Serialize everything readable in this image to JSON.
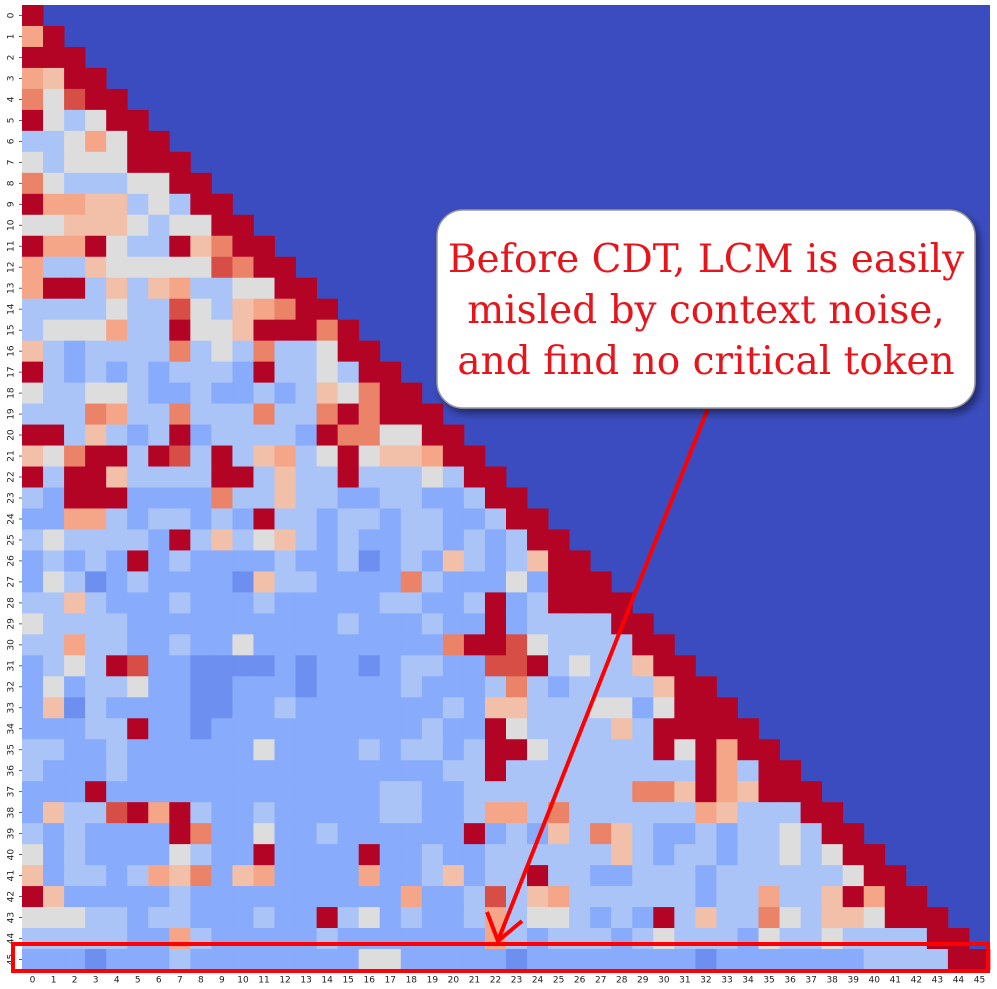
{
  "chart_data": {
    "type": "heatmap",
    "colormap": "coolwarm",
    "clim": [
      0,
      1
    ],
    "xticks": [
      0,
      1,
      2,
      3,
      4,
      5,
      6,
      7,
      8,
      9,
      10,
      11,
      12,
      13,
      14,
      15,
      16,
      17,
      18,
      19,
      20,
      21,
      22,
      23,
      24,
      25,
      26,
      27,
      28,
      29,
      30,
      31,
      32,
      33,
      34,
      35,
      36,
      37,
      38,
      39,
      40,
      41,
      42,
      43,
      44,
      45
    ],
    "yticks": [
      0,
      1,
      2,
      3,
      4,
      5,
      6,
      7,
      8,
      9,
      10,
      11,
      12,
      13,
      14,
      15,
      16,
      17,
      18,
      19,
      20,
      21,
      22,
      23,
      24,
      25,
      26,
      27,
      28,
      29,
      30,
      31,
      32,
      33,
      34,
      35,
      36,
      37,
      38,
      39,
      40,
      41,
      42,
      43,
      44,
      45
    ],
    "annotation": [
      "Before CDT, LCM is easily",
      "misled by context noise,",
      "and find no critical token"
    ],
    "values": [
      [
        1
      ],
      [
        0.7,
        1
      ],
      [
        1,
        1,
        1
      ],
      [
        0.7,
        0.6,
        1,
        1
      ],
      [
        0.8,
        0.5,
        0.9,
        1,
        1
      ],
      [
        1,
        0.5,
        0.4,
        0.5,
        1,
        1
      ],
      [
        0.4,
        0.4,
        0.5,
        0.7,
        0.5,
        1,
        1
      ],
      [
        0.5,
        0.4,
        0.5,
        0.5,
        0.5,
        1,
        1,
        1
      ],
      [
        0.8,
        0.5,
        0.4,
        0.4,
        0.4,
        0.5,
        0.5,
        1,
        1
      ],
      [
        1,
        0.7,
        0.7,
        0.6,
        0.6,
        0.4,
        0.5,
        0.4,
        1,
        1
      ],
      [
        0.5,
        0.5,
        0.6,
        0.6,
        0.6,
        0.5,
        0.4,
        0.5,
        0.5,
        1,
        1
      ],
      [
        1,
        0.7,
        0.7,
        1,
        0.5,
        0.4,
        0.4,
        1,
        0.6,
        0.8,
        1,
        1
      ],
      [
        0.7,
        0.4,
        0.4,
        0.6,
        0.5,
        0.5,
        0.5,
        0.5,
        0.5,
        0.9,
        0.8,
        1,
        1
      ],
      [
        0.7,
        1,
        1,
        0.4,
        0.6,
        0.4,
        0.6,
        0.7,
        0.4,
        0.4,
        0.5,
        0.5,
        1,
        1
      ],
      [
        0.4,
        0.4,
        0.4,
        0.4,
        0.5,
        0.4,
        0.4,
        0.9,
        0.5,
        0.4,
        0.6,
        0.7,
        0.8,
        1,
        1
      ],
      [
        0.4,
        0.5,
        0.5,
        0.5,
        0.7,
        0.4,
        0.4,
        1,
        0.5,
        0.5,
        0.6,
        1,
        1,
        1,
        0.8,
        1
      ],
      [
        0.6,
        0.4,
        0.3,
        0.4,
        0.4,
        0.4,
        0.4,
        0.8,
        0.4,
        0.5,
        0.4,
        0.8,
        0.4,
        0.4,
        0.5,
        1,
        1
      ],
      [
        1,
        0.4,
        0.3,
        0.4,
        0.3,
        0.4,
        0.3,
        0.4,
        0.4,
        0.4,
        0.3,
        1,
        0.4,
        0.4,
        0.5,
        0.4,
        1,
        1
      ],
      [
        0.5,
        0.4,
        0.4,
        0.5,
        0.5,
        0.4,
        0.3,
        0.3,
        0.4,
        0.3,
        0.3,
        0.4,
        0.3,
        0.4,
        0.6,
        0.5,
        0.8,
        1,
        1
      ],
      [
        0.4,
        0.4,
        0.4,
        0.8,
        0.7,
        0.4,
        0.4,
        0.8,
        0.4,
        0.4,
        0.4,
        0.8,
        0.4,
        0.4,
        0.8,
        1,
        0.8,
        1,
        1,
        1
      ],
      [
        1,
        1,
        0.4,
        0.6,
        0.4,
        0.3,
        0.4,
        1,
        0.3,
        0.4,
        0.4,
        0.4,
        0.4,
        0.3,
        1,
        0.8,
        0.8,
        0.5,
        0.5,
        1,
        1
      ],
      [
        0.6,
        0.5,
        0.8,
        1,
        1,
        0.4,
        1,
        0.9,
        0.4,
        1,
        0.4,
        0.6,
        0.7,
        0.4,
        0.5,
        1,
        0.5,
        0.6,
        0.6,
        0.7,
        1,
        1
      ],
      [
        1,
        0.4,
        1,
        1,
        0.6,
        0.4,
        0.4,
        0.4,
        0.4,
        1,
        1,
        0.4,
        0.6,
        0.4,
        0.4,
        1,
        0.4,
        0.4,
        0.4,
        0.5,
        0.4,
        1,
        1
      ],
      [
        0.4,
        0.3,
        1,
        1,
        1,
        0.3,
        0.3,
        0.3,
        0.3,
        0.8,
        0.4,
        0.4,
        0.6,
        0.4,
        0.4,
        0.3,
        0.3,
        0.4,
        0.4,
        0.3,
        0.3,
        0.4,
        1,
        1
      ],
      [
        0.3,
        0.3,
        0.7,
        0.7,
        0.4,
        0.3,
        0.4,
        0.4,
        0.3,
        0.4,
        0.3,
        1,
        0.4,
        0.4,
        0.3,
        0.4,
        0.4,
        0.3,
        0.4,
        0.4,
        0.3,
        0.3,
        0.4,
        1,
        1
      ],
      [
        0.4,
        0.5,
        0.4,
        0.4,
        0.4,
        0.4,
        0.3,
        1,
        0.4,
        0.6,
        0.4,
        0.5,
        0.6,
        0.4,
        0.3,
        0.4,
        0.3,
        0.3,
        0.4,
        0.4,
        0.3,
        0.4,
        0.3,
        0.4,
        1,
        1
      ],
      [
        0.3,
        0.4,
        0.3,
        0.4,
        0.3,
        1,
        0.3,
        0.4,
        0.3,
        0.3,
        0.3,
        0.3,
        0.4,
        0.3,
        0.3,
        0.4,
        0.2,
        0.3,
        0.4,
        0.3,
        0.6,
        0.4,
        0.3,
        0.4,
        0.6,
        1,
        1
      ],
      [
        0.3,
        0.5,
        0.4,
        0.2,
        0.3,
        0.4,
        0.3,
        0.3,
        0.3,
        0.3,
        0.2,
        0.6,
        0.4,
        0.4,
        0.3,
        0.3,
        0.3,
        0.3,
        0.8,
        0.4,
        0.3,
        0.3,
        0.3,
        0.5,
        0.3,
        1,
        1,
        1
      ],
      [
        0.4,
        0.4,
        0.6,
        0.4,
        0.3,
        0.3,
        0.3,
        0.4,
        0.3,
        0.3,
        0.3,
        0.4,
        0.3,
        0.3,
        0.3,
        0.3,
        0.3,
        0.4,
        0.4,
        0.3,
        0.3,
        0.4,
        1,
        0.3,
        0.4,
        1,
        1,
        1,
        1
      ],
      [
        0.5,
        0.4,
        0.4,
        0.4,
        0.4,
        0.3,
        0.3,
        0.3,
        0.3,
        0.3,
        0.3,
        0.3,
        0.3,
        0.3,
        0.3,
        0.4,
        0.3,
        0.3,
        0.3,
        0.4,
        0.3,
        0.3,
        1,
        0.3,
        0.4,
        0.4,
        0.4,
        0.4,
        1,
        1
      ],
      [
        0.4,
        0.4,
        0.7,
        0.4,
        0.4,
        0.3,
        0.3,
        0.4,
        0.3,
        0.3,
        0.5,
        0.3,
        0.3,
        0.3,
        0.3,
        0.3,
        0.3,
        0.3,
        0.3,
        0.3,
        0.8,
        1,
        1,
        0.9,
        0.5,
        0.4,
        0.4,
        0.4,
        0.4,
        1,
        1
      ],
      [
        0.3,
        0.4,
        0.5,
        0.4,
        1,
        0.9,
        0.3,
        0.3,
        0.2,
        0.2,
        0.2,
        0.2,
        0.3,
        0.2,
        0.3,
        0.3,
        0.2,
        0.3,
        0.4,
        0.4,
        0.3,
        0.3,
        0.9,
        0.9,
        1,
        0.4,
        0.5,
        0.4,
        0.4,
        0.6,
        1,
        1
      ],
      [
        0.3,
        0.5,
        0.3,
        0.4,
        0.4,
        0.5,
        0.3,
        0.3,
        0.2,
        0.2,
        0.3,
        0.3,
        0.3,
        0.2,
        0.3,
        0.3,
        0.3,
        0.3,
        0.4,
        0.3,
        0.3,
        0.3,
        0.4,
        0.8,
        0.4,
        0.3,
        0.4,
        0.4,
        0.4,
        0.4,
        0.6,
        1,
        1
      ],
      [
        0.3,
        0.6,
        0.2,
        0.4,
        0.3,
        0.3,
        0.3,
        0.3,
        0.2,
        0.2,
        0.3,
        0.3,
        0.4,
        0.3,
        0.3,
        0.3,
        0.3,
        0.3,
        0.3,
        0.3,
        0.4,
        0.3,
        0.6,
        0.6,
        0.4,
        0.4,
        0.4,
        0.5,
        0.5,
        0.3,
        0.5,
        1,
        1,
        1
      ],
      [
        0.3,
        0.3,
        0.3,
        0.4,
        0.4,
        1,
        0.3,
        0.3,
        0.2,
        0.3,
        0.3,
        0.3,
        0.3,
        0.3,
        0.3,
        0.3,
        0.3,
        0.3,
        0.3,
        0.4,
        0.3,
        0.3,
        1,
        0.5,
        0.4,
        0.4,
        0.4,
        0.4,
        0.6,
        0.4,
        1,
        1,
        1,
        1,
        1
      ],
      [
        0.4,
        0.4,
        0.3,
        0.3,
        0.4,
        0.3,
        0.3,
        0.3,
        0.3,
        0.3,
        0.3,
        0.5,
        0.3,
        0.3,
        0.3,
        0.3,
        0.4,
        0.3,
        0.4,
        0.4,
        0.3,
        0.4,
        1,
        1,
        0.5,
        0.4,
        0.4,
        0.4,
        0.4,
        0.4,
        1,
        0.5,
        1,
        0.7,
        1,
        1
      ],
      [
        0.4,
        0.3,
        0.3,
        0.3,
        0.4,
        0.3,
        0.3,
        0.3,
        0.3,
        0.3,
        0.3,
        0.3,
        0.3,
        0.3,
        0.3,
        0.3,
        0.3,
        0.3,
        0.3,
        0.3,
        0.4,
        0.4,
        1,
        0.4,
        0.4,
        0.4,
        0.4,
        0.4,
        0.4,
        0.4,
        0.4,
        0.4,
        1,
        0.7,
        0.4,
        1,
        1
      ],
      [
        0.3,
        0.3,
        0.3,
        1,
        0.3,
        0.3,
        0.3,
        0.3,
        0.3,
        0.3,
        0.3,
        0.3,
        0.3,
        0.3,
        0.3,
        0.3,
        0.3,
        0.4,
        0.4,
        0.3,
        0.3,
        0.4,
        0.4,
        0.4,
        0.4,
        0.4,
        0.4,
        0.4,
        0.4,
        0.8,
        0.8,
        0.6,
        1,
        0.7,
        0.6,
        1,
        1,
        1
      ],
      [
        0.3,
        0.6,
        0.4,
        0.4,
        0.9,
        1,
        0.7,
        1,
        0.4,
        0.3,
        0.3,
        0.4,
        0.3,
        0.3,
        0.3,
        0.3,
        0.3,
        0.4,
        0.4,
        0.3,
        0.3,
        0.4,
        0.7,
        0.7,
        0.4,
        0.8,
        0.4,
        0.4,
        0.4,
        0.4,
        0.4,
        0.4,
        0.7,
        0.6,
        0.4,
        0.4,
        0.4,
        1,
        1
      ],
      [
        0.4,
        0.3,
        0.4,
        0.3,
        0.3,
        0.3,
        0.3,
        1,
        0.8,
        0.3,
        0.3,
        0.5,
        0.3,
        0.3,
        0.4,
        0.3,
        0.3,
        0.3,
        0.3,
        0.3,
        0.3,
        1,
        0.3,
        0.4,
        0.3,
        0.6,
        0.4,
        0.8,
        0.6,
        0.4,
        0.3,
        0.3,
        0.4,
        0.3,
        0.4,
        0.4,
        0.5,
        0.4,
        1,
        1
      ],
      [
        0.5,
        0.3,
        0.4,
        0.3,
        0.3,
        0.3,
        0.3,
        0.5,
        0.4,
        0.3,
        0.3,
        1,
        0.3,
        0.3,
        0.3,
        0.3,
        1,
        0.3,
        0.3,
        0.4,
        0.3,
        0.3,
        0.4,
        0.4,
        0.4,
        0.4,
        0.4,
        0.4,
        0.6,
        0.4,
        0.3,
        0.4,
        0.4,
        0.3,
        0.4,
        0.4,
        0.5,
        0.4,
        0.5,
        1,
        1
      ],
      [
        0.6,
        0.3,
        0.4,
        0.4,
        0.3,
        0.4,
        0.7,
        0.6,
        0.8,
        0.3,
        0.6,
        0.7,
        0.3,
        0.3,
        0.3,
        0.3,
        0.7,
        0.3,
        0.3,
        0.4,
        0.6,
        0.3,
        0.4,
        0.4,
        1,
        0.4,
        0.4,
        0.3,
        0.3,
        0.4,
        0.4,
        0.4,
        0.3,
        0.4,
        0.4,
        0.4,
        0.4,
        0.4,
        0.4,
        0.5,
        1,
        1
      ],
      [
        1,
        0.6,
        0.3,
        0.3,
        0.3,
        0.3,
        0.3,
        0.4,
        0.3,
        0.3,
        0.3,
        0.3,
        0.3,
        0.3,
        0.3,
        0.3,
        0.3,
        0.3,
        0.7,
        0.3,
        0.3,
        0.4,
        0.9,
        0.4,
        0.6,
        0.7,
        0.4,
        0.4,
        0.4,
        0.4,
        0.4,
        0.4,
        0.3,
        0.4,
        0.4,
        0.7,
        0.4,
        0.4,
        0.6,
        1,
        0.7,
        1,
        1
      ],
      [
        0.5,
        0.5,
        0.5,
        0.4,
        0.4,
        0.3,
        0.4,
        0.4,
        0.3,
        0.3,
        0.3,
        0.4,
        0.3,
        0.3,
        1,
        0.4,
        0.5,
        0.3,
        0.4,
        0.3,
        0.3,
        0.4,
        0.7,
        0.4,
        0.5,
        0.5,
        0.4,
        0.3,
        0.4,
        0.3,
        1,
        0.4,
        0.6,
        0.4,
        0.4,
        0.8,
        0.5,
        0.4,
        0.6,
        0.6,
        0.5,
        1,
        1,
        1
      ],
      [
        0.4,
        0.4,
        0.4,
        0.4,
        0.4,
        0.3,
        0.3,
        0.7,
        0.4,
        0.3,
        0.3,
        0.3,
        0.3,
        0.3,
        0.4,
        0.3,
        0.3,
        0.3,
        0.3,
        0.3,
        0.3,
        0.3,
        0.7,
        0.4,
        0.3,
        0.4,
        0.4,
        0.4,
        0.3,
        0.4,
        0.5,
        0.4,
        0.4,
        0.4,
        0.3,
        0.5,
        0.4,
        0.4,
        0.5,
        0.4,
        0.4,
        0.4,
        0.4,
        1,
        1
      ],
      [
        0.3,
        0.3,
        0.3,
        0.2,
        0.3,
        0.3,
        0.3,
        0.4,
        0.3,
        0.3,
        0.3,
        0.3,
        0.3,
        0.3,
        0.3,
        0.3,
        0.5,
        0.5,
        0.3,
        0.3,
        0.3,
        0.3,
        0.3,
        0.2,
        0.3,
        0.3,
        0.3,
        0.3,
        0.3,
        0.3,
        0.3,
        0.3,
        0.2,
        0.3,
        0.3,
        0.3,
        0.3,
        0.3,
        0.3,
        0.3,
        0.4,
        0.4,
        0.4,
        0.4,
        1,
        1
      ]
    ]
  }
}
